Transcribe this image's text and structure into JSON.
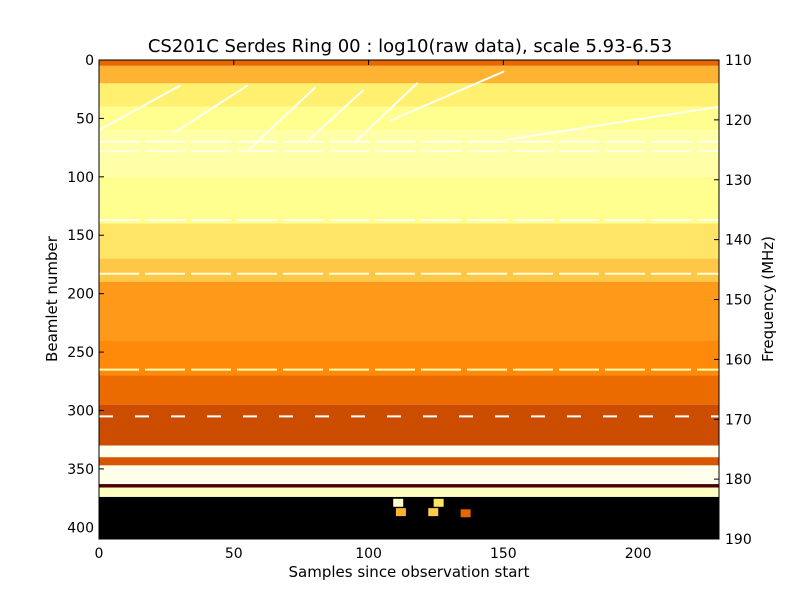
{
  "chart_data": {
    "type": "heatmap",
    "title": "CS201C Serdes Ring 00 : log10(raw data), scale 5.93-6.53",
    "xlabel": "Samples since observation start",
    "ylabel": "Beamlet number",
    "y2label": "Frequency (MHz)",
    "xlim": [
      0,
      230
    ],
    "ylim": [
      410,
      0
    ],
    "y2lim": [
      190,
      110
    ],
    "x_ticks": [
      0,
      50,
      100,
      150,
      200
    ],
    "y_ticks": [
      0,
      50,
      100,
      150,
      200,
      250,
      300,
      350,
      400
    ],
    "y2_ticks": [
      110,
      120,
      130,
      140,
      150,
      160,
      170,
      180,
      190
    ],
    "color_scale": {
      "min": 5.93,
      "max": 6.53,
      "colormap": "afmhot"
    },
    "grid": false,
    "row_levels": [
      {
        "beamlets": [
          0,
          5
        ],
        "level": 0.45
      },
      {
        "beamlets": [
          5,
          20
        ],
        "level": 0.6
      },
      {
        "beamlets": [
          20,
          40
        ],
        "level": 0.72
      },
      {
        "beamlets": [
          40,
          60
        ],
        "level": 0.78
      },
      {
        "beamlets": [
          60,
          100
        ],
        "level": 0.83
      },
      {
        "beamlets": [
          100,
          140
        ],
        "level": 0.78
      },
      {
        "beamlets": [
          140,
          170
        ],
        "level": 0.7
      },
      {
        "beamlets": [
          170,
          190
        ],
        "level": 0.64
      },
      {
        "beamlets": [
          190,
          240
        ],
        "level": 0.55
      },
      {
        "beamlets": [
          240,
          270
        ],
        "level": 0.52
      },
      {
        "beamlets": [
          270,
          295
        ],
        "level": 0.46
      },
      {
        "beamlets": [
          295,
          330
        ],
        "level": 0.4
      },
      {
        "beamlets": [
          330,
          340
        ],
        "level": 0.97
      },
      {
        "beamlets": [
          340,
          347
        ],
        "level": 0.42
      },
      {
        "beamlets": [
          347,
          363
        ],
        "level": 0.96
      },
      {
        "beamlets": [
          363,
          366
        ],
        "level": 0.15
      },
      {
        "beamlets": [
          366,
          374
        ],
        "level": 0.88
      },
      {
        "beamlets": [
          374,
          410
        ],
        "level": 0.0
      }
    ],
    "bright_lines": [
      {
        "beamlet": 70,
        "level": 0.97
      },
      {
        "beamlet": 78,
        "level": 0.95
      },
      {
        "beamlet": 137,
        "level": 0.98
      },
      {
        "beamlet": 183,
        "level": 0.92
      },
      {
        "beamlet": 265,
        "level": 0.85
      },
      {
        "beamlet": 305,
        "level": 1.0
      }
    ],
    "sweep_tracks": [
      {
        "start": [
          0,
          60
        ],
        "end": [
          30,
          22
        ]
      },
      {
        "start": [
          28,
          62
        ],
        "end": [
          55,
          22
        ]
      },
      {
        "start": [
          55,
          78
        ],
        "end": [
          80,
          24
        ]
      },
      {
        "start": [
          78,
          68
        ],
        "end": [
          98,
          26
        ]
      },
      {
        "start": [
          95,
          70
        ],
        "end": [
          118,
          20
        ]
      },
      {
        "start": [
          108,
          52
        ],
        "end": [
          150,
          10
        ]
      },
      {
        "start": [
          152,
          68
        ],
        "end": [
          230,
          40
        ]
      }
    ],
    "hot_spots": [
      {
        "x": 111,
        "beamlet": 379,
        "level": 0.9
      },
      {
        "x": 126,
        "beamlet": 379,
        "level": 0.7
      },
      {
        "x": 112,
        "beamlet": 387,
        "level": 0.6
      },
      {
        "x": 124,
        "beamlet": 387,
        "level": 0.65
      },
      {
        "x": 136,
        "beamlet": 388,
        "level": 0.45
      }
    ]
  }
}
